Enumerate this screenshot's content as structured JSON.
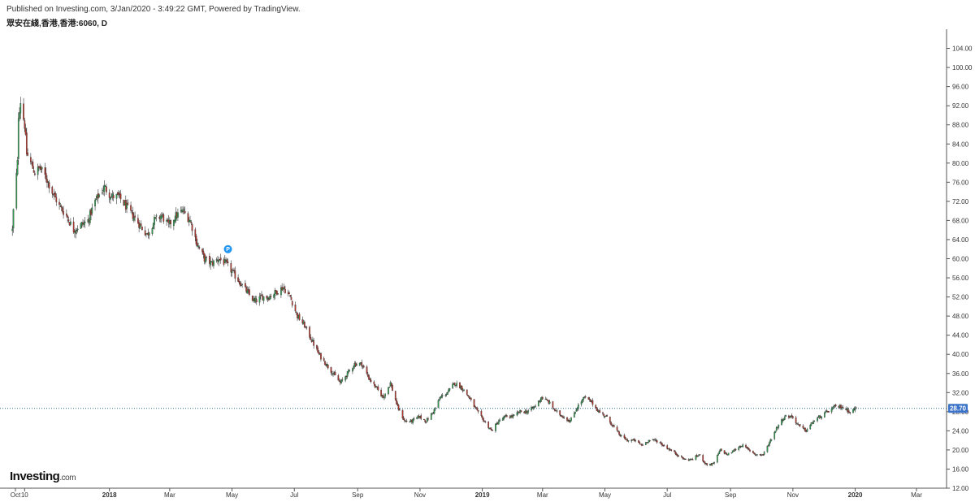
{
  "header": {
    "published": "Published on Investing.com, 3/Jan/2020 - 3:49:22 GMT, Powered by TradingView.",
    "symbol": "眾安在綫,香港,香港:6060, D"
  },
  "logo": {
    "main": "Investing",
    "suffix": ".com"
  },
  "colors": {
    "up": "#2f9a4e",
    "down": "#b3362c",
    "wick": "#333333",
    "last_price_line": "#2b6f8f",
    "last_price_bg": "#3a73c9",
    "marker": "#2196f3"
  },
  "chart_data": {
    "type": "candlestick",
    "ylim": [
      12,
      108
    ],
    "yticks": [
      "104.00",
      "100.00",
      "96.00",
      "92.00",
      "88.00",
      "84.00",
      "80.00",
      "76.00",
      "72.00",
      "68.00",
      "64.00",
      "60.00",
      "56.00",
      "52.00",
      "48.00",
      "44.00",
      "40.00",
      "36.00",
      "32.00",
      "28.00",
      "24.00",
      "20.00",
      "16.00",
      "12.00"
    ],
    "x_ticks": [
      {
        "label": "Oct",
        "date": "2017-10-01",
        "bold": false
      },
      {
        "label": "10",
        "date": "2017-10-10",
        "bold": false
      },
      {
        "label": "2018",
        "date": "2018-01-01",
        "bold": true
      },
      {
        "label": "Mar",
        "date": "2018-03-01",
        "bold": false
      },
      {
        "label": "May",
        "date": "2018-05-01",
        "bold": false
      },
      {
        "label": "Jul",
        "date": "2018-07-01",
        "bold": false
      },
      {
        "label": "Sep",
        "date": "2018-09-01",
        "bold": false
      },
      {
        "label": "Nov",
        "date": "2018-11-01",
        "bold": false
      },
      {
        "label": "2019",
        "date": "2019-01-01",
        "bold": true
      },
      {
        "label": "Mar",
        "date": "2019-03-01",
        "bold": false
      },
      {
        "label": "May",
        "date": "2019-05-01",
        "bold": false
      },
      {
        "label": "Jul",
        "date": "2019-07-01",
        "bold": false
      },
      {
        "label": "Sep",
        "date": "2019-09-01",
        "bold": false
      },
      {
        "label": "Nov",
        "date": "2019-11-01",
        "bold": false
      },
      {
        "label": "2020",
        "date": "2020-01-01",
        "bold": true
      },
      {
        "label": "Mar",
        "date": "2020-03-01",
        "bold": false
      }
    ],
    "last_price": 28.7,
    "last_price_label": "28.70",
    "marker": {
      "label": "P",
      "date": "2018-04-27",
      "value": 62.0
    },
    "close_path": [
      [
        "2017-09-28",
        66.0
      ],
      [
        "2017-09-29",
        70.0
      ],
      [
        "2017-10-03",
        80.0
      ],
      [
        "2017-10-04",
        90.0
      ],
      [
        "2017-10-06",
        93.0
      ],
      [
        "2017-10-10",
        88.0
      ],
      [
        "2017-10-12",
        82.0
      ],
      [
        "2017-10-16",
        80.0
      ],
      [
        "2017-10-20",
        78.0
      ],
      [
        "2017-10-25",
        79.0
      ],
      [
        "2017-10-31",
        77.0
      ],
      [
        "2017-11-06",
        74.0
      ],
      [
        "2017-11-13",
        71.0
      ],
      [
        "2017-11-20",
        69.0
      ],
      [
        "2017-11-27",
        66.0
      ],
      [
        "2017-12-04",
        67.0
      ],
      [
        "2017-12-11",
        68.0
      ],
      [
        "2017-12-18",
        72.0
      ],
      [
        "2017-12-27",
        75.0
      ],
      [
        "2018-01-03",
        73.0
      ],
      [
        "2018-01-10",
        73.0
      ],
      [
        "2018-01-17",
        71.0
      ],
      [
        "2018-01-24",
        69.0
      ],
      [
        "2018-01-31",
        67.0
      ],
      [
        "2018-02-07",
        65.0
      ],
      [
        "2018-02-14",
        68.0
      ],
      [
        "2018-02-21",
        69.0
      ],
      [
        "2018-02-28",
        67.0
      ],
      [
        "2018-03-07",
        69.0
      ],
      [
        "2018-03-14",
        70.0
      ],
      [
        "2018-03-21",
        68.0
      ],
      [
        "2018-03-28",
        63.0
      ],
      [
        "2018-04-04",
        60.0
      ],
      [
        "2018-04-11",
        59.0
      ],
      [
        "2018-04-18",
        60.0
      ],
      [
        "2018-04-25",
        59.0
      ],
      [
        "2018-05-02",
        57.0
      ],
      [
        "2018-05-09",
        55.0
      ],
      [
        "2018-05-16",
        53.0
      ],
      [
        "2018-05-23",
        51.0
      ],
      [
        "2018-05-30",
        52.0
      ],
      [
        "2018-06-06",
        52.0
      ],
      [
        "2018-06-13",
        53.0
      ],
      [
        "2018-06-20",
        54.0
      ],
      [
        "2018-06-27",
        52.0
      ],
      [
        "2018-07-04",
        48.0
      ],
      [
        "2018-07-11",
        46.0
      ],
      [
        "2018-07-18",
        43.0
      ],
      [
        "2018-07-25",
        40.0
      ],
      [
        "2018-08-01",
        38.0
      ],
      [
        "2018-08-08",
        36.0
      ],
      [
        "2018-08-15",
        34.0
      ],
      [
        "2018-08-22",
        36.0
      ],
      [
        "2018-08-29",
        38.0
      ],
      [
        "2018-09-05",
        38.0
      ],
      [
        "2018-09-12",
        35.0
      ],
      [
        "2018-09-19",
        33.0
      ],
      [
        "2018-09-26",
        31.0
      ],
      [
        "2018-10-03",
        34.0
      ],
      [
        "2018-10-10",
        29.0
      ],
      [
        "2018-10-17",
        26.0
      ],
      [
        "2018-10-24",
        26.0
      ],
      [
        "2018-10-31",
        27.0
      ],
      [
        "2018-11-07",
        26.0
      ],
      [
        "2018-11-14",
        28.0
      ],
      [
        "2018-11-21",
        31.0
      ],
      [
        "2018-11-28",
        32.0
      ],
      [
        "2018-12-05",
        34.0
      ],
      [
        "2018-12-12",
        33.0
      ],
      [
        "2018-12-19",
        31.0
      ],
      [
        "2018-12-27",
        28.0
      ],
      [
        "2019-01-03",
        26.0
      ],
      [
        "2019-01-10",
        24.0
      ],
      [
        "2019-01-17",
        26.0
      ],
      [
        "2019-01-24",
        27.0
      ],
      [
        "2019-01-31",
        27.0
      ],
      [
        "2019-02-07",
        28.0
      ],
      [
        "2019-02-14",
        28.0
      ],
      [
        "2019-02-21",
        29.0
      ],
      [
        "2019-02-28",
        31.0
      ],
      [
        "2019-03-07",
        30.0
      ],
      [
        "2019-03-14",
        28.0
      ],
      [
        "2019-03-21",
        27.0
      ],
      [
        "2019-03-28",
        26.0
      ],
      [
        "2019-04-04",
        29.0
      ],
      [
        "2019-04-11",
        31.0
      ],
      [
        "2019-04-18",
        30.0
      ],
      [
        "2019-04-25",
        28.0
      ],
      [
        "2019-05-02",
        27.0
      ],
      [
        "2019-05-09",
        25.0
      ],
      [
        "2019-05-16",
        23.0
      ],
      [
        "2019-05-23",
        22.0
      ],
      [
        "2019-05-30",
        22.0
      ],
      [
        "2019-06-06",
        21.0
      ],
      [
        "2019-06-13",
        22.0
      ],
      [
        "2019-06-20",
        22.0
      ],
      [
        "2019-06-27",
        21.0
      ],
      [
        "2019-07-04",
        20.0
      ],
      [
        "2019-07-11",
        19.0
      ],
      [
        "2019-07-18",
        18.0
      ],
      [
        "2019-07-25",
        18.0
      ],
      [
        "2019-08-01",
        19.0
      ],
      [
        "2019-08-08",
        17.0
      ],
      [
        "2019-08-15",
        17.0
      ],
      [
        "2019-08-22",
        20.0
      ],
      [
        "2019-08-29",
        19.0
      ],
      [
        "2019-09-05",
        20.0
      ],
      [
        "2019-09-12",
        21.0
      ],
      [
        "2019-09-19",
        20.0
      ],
      [
        "2019-09-26",
        19.0
      ],
      [
        "2019-10-03",
        19.0
      ],
      [
        "2019-10-10",
        22.0
      ],
      [
        "2019-10-17",
        25.0
      ],
      [
        "2019-10-24",
        27.0
      ],
      [
        "2019-10-31",
        27.0
      ],
      [
        "2019-11-07",
        25.0
      ],
      [
        "2019-11-14",
        24.0
      ],
      [
        "2019-11-21",
        26.0
      ],
      [
        "2019-11-28",
        27.0
      ],
      [
        "2019-12-05",
        28.0
      ],
      [
        "2019-12-12",
        29.0
      ],
      [
        "2019-12-19",
        29.0
      ],
      [
        "2019-12-27",
        28.0
      ],
      [
        "2020-01-02",
        28.7
      ]
    ]
  }
}
